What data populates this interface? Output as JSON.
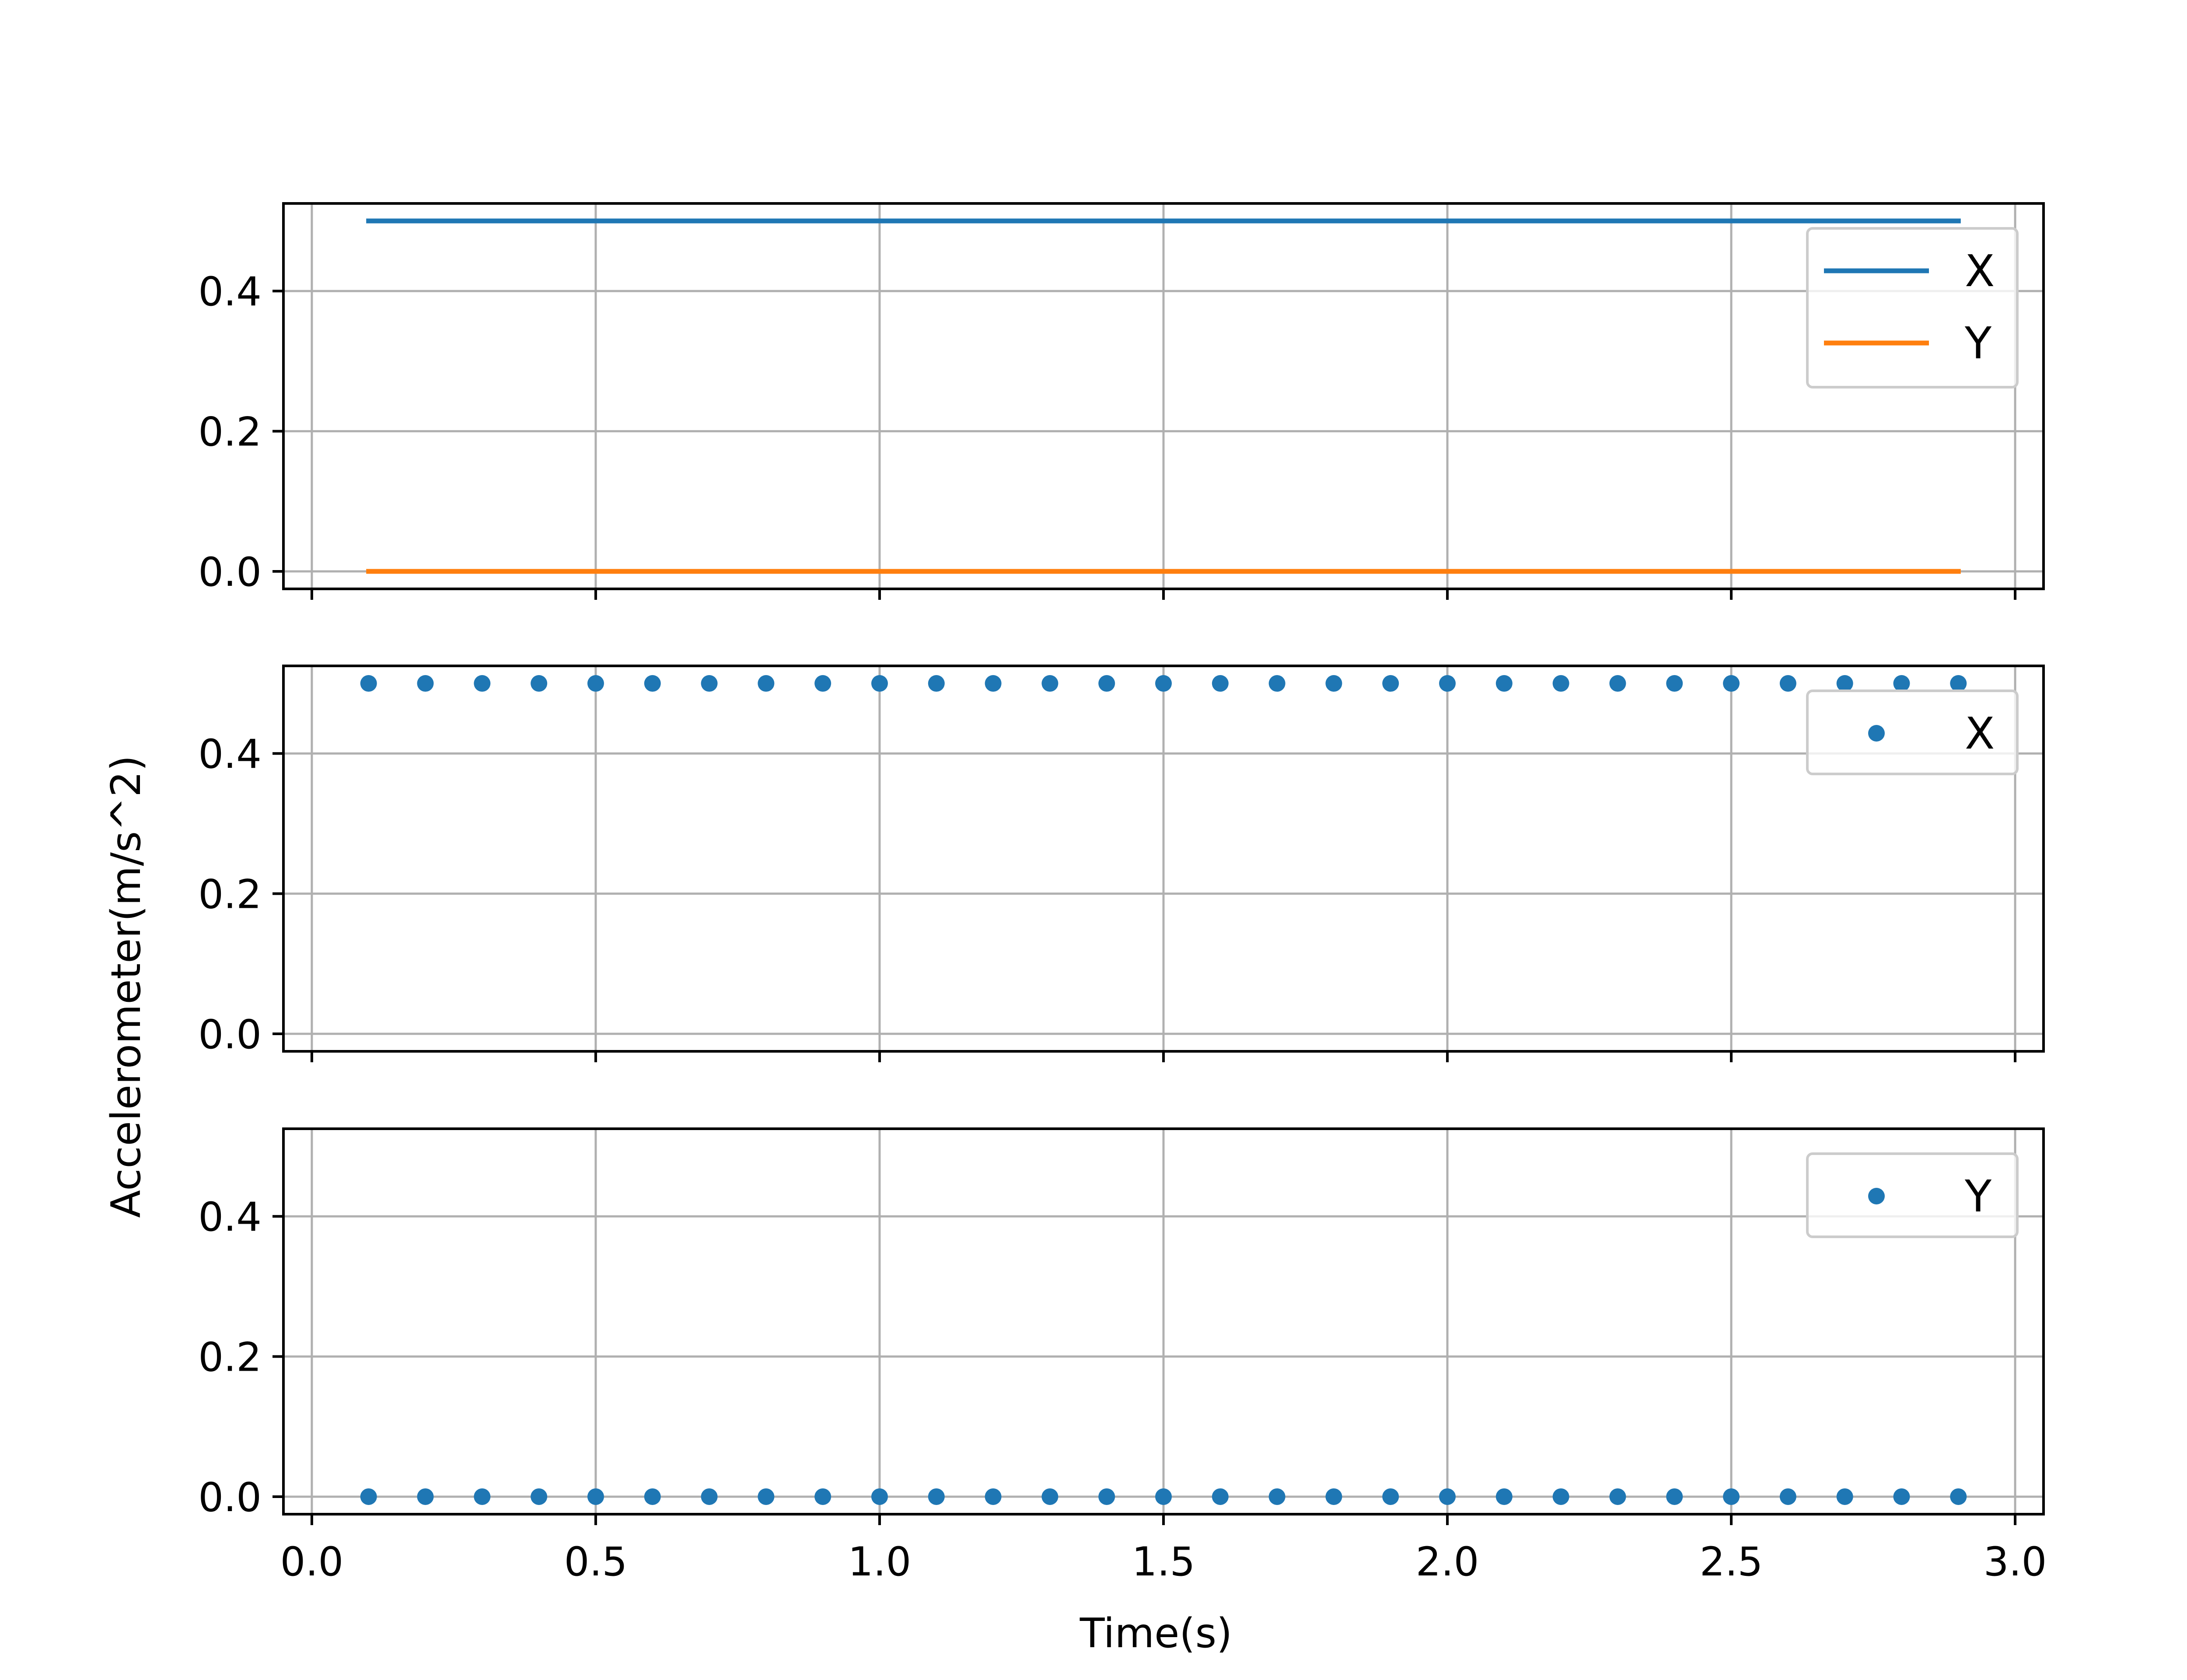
{
  "figure": {
    "background": "#ffffff",
    "xlabel": "Time(s)",
    "ylabel": "Accelerometer(m/s^2)"
  },
  "colors": {
    "series_x": "#1f77b4",
    "series_y": "#ff7f0e",
    "grid": "#b0b0b0",
    "legend_border": "#cccccc"
  },
  "chart_data": [
    {
      "type": "line",
      "panel": "top",
      "x": [
        0.1,
        2.9
      ],
      "series": [
        {
          "name": "X",
          "values": [
            0.5,
            0.5
          ],
          "color": "#1f77b4"
        },
        {
          "name": "Y",
          "values": [
            0.0,
            0.0
          ],
          "color": "#ff7f0e"
        }
      ],
      "xlim": [
        -0.05,
        3.05
      ],
      "ylim": [
        -0.025,
        0.525
      ],
      "yticks": [
        "0.0",
        "0.2",
        "0.4"
      ],
      "xticks_labeled": false,
      "grid": true,
      "legend": "upper right"
    },
    {
      "type": "scatter",
      "panel": "middle",
      "x": [
        0.1,
        0.2,
        0.3,
        0.4,
        0.5,
        0.6,
        0.7,
        0.8,
        0.9,
        1.0,
        1.1,
        1.2,
        1.3,
        1.4,
        1.5,
        1.6,
        1.7,
        1.8,
        1.9,
        2.0,
        2.1,
        2.2,
        2.3,
        2.4,
        2.5,
        2.6,
        2.7,
        2.8,
        2.9
      ],
      "series": [
        {
          "name": "X",
          "values": [
            0.5,
            0.5,
            0.5,
            0.5,
            0.5,
            0.5,
            0.5,
            0.5,
            0.5,
            0.5,
            0.5,
            0.5,
            0.5,
            0.5,
            0.5,
            0.5,
            0.5,
            0.5,
            0.5,
            0.5,
            0.5,
            0.5,
            0.5,
            0.5,
            0.5,
            0.5,
            0.5,
            0.5,
            0.5
          ],
          "color": "#1f77b4"
        }
      ],
      "xlim": [
        -0.05,
        3.05
      ],
      "ylim": [
        -0.025,
        0.525
      ],
      "yticks": [
        "0.0",
        "0.2",
        "0.4"
      ],
      "xticks_labeled": false,
      "grid": true,
      "legend": "upper right"
    },
    {
      "type": "scatter",
      "panel": "bottom",
      "x": [
        0.1,
        0.2,
        0.3,
        0.4,
        0.5,
        0.6,
        0.7,
        0.8,
        0.9,
        1.0,
        1.1,
        1.2,
        1.3,
        1.4,
        1.5,
        1.6,
        1.7,
        1.8,
        1.9,
        2.0,
        2.1,
        2.2,
        2.3,
        2.4,
        2.5,
        2.6,
        2.7,
        2.8,
        2.9
      ],
      "series": [
        {
          "name": "Y",
          "values": [
            0,
            0,
            0,
            0,
            0,
            0,
            0,
            0,
            0,
            0,
            0,
            0,
            0,
            0,
            0,
            0,
            0,
            0,
            0,
            0,
            0,
            0,
            0,
            0,
            0,
            0,
            0,
            0,
            0
          ],
          "color": "#1f77b4"
        }
      ],
      "xlim": [
        -0.05,
        3.05
      ],
      "ylim": [
        -0.025,
        0.525
      ],
      "yticks": [
        "0.0",
        "0.2",
        "0.4"
      ],
      "xticks": [
        "0.0",
        "0.5",
        "1.0",
        "1.5",
        "2.0",
        "2.5",
        "3.0"
      ],
      "xticks_labeled": true,
      "grid": true,
      "legend": "upper right"
    }
  ]
}
